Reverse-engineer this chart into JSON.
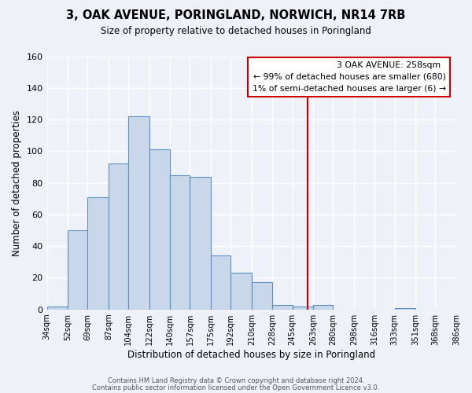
{
  "title": "3, OAK AVENUE, PORINGLAND, NORWICH, NR14 7RB",
  "subtitle": "Size of property relative to detached houses in Poringland",
  "xlabel": "Distribution of detached houses by size in Poringland",
  "ylabel": "Number of detached properties",
  "bar_color": "#c8d8ea",
  "bar_edge_color": "#5a8fbf",
  "background_color": "#eef2f8",
  "grid_color": "#ffffff",
  "bin_edges": [
    34,
    52,
    69,
    87,
    104,
    122,
    140,
    157,
    175,
    192,
    210,
    228,
    245,
    263,
    280,
    298,
    316,
    333,
    351,
    368,
    386
  ],
  "bin_labels": [
    "34sqm",
    "52sqm",
    "69sqm",
    "87sqm",
    "104sqm",
    "122sqm",
    "140sqm",
    "157sqm",
    "175sqm",
    "192sqm",
    "210sqm",
    "228sqm",
    "245sqm",
    "263sqm",
    "280sqm",
    "298sqm",
    "316sqm",
    "333sqm",
    "351sqm",
    "368sqm",
    "386sqm"
  ],
  "counts": [
    2,
    50,
    71,
    92,
    122,
    101,
    85,
    84,
    34,
    23,
    17,
    3,
    2,
    3,
    0,
    0,
    0,
    1,
    0,
    0
  ],
  "vline_x": 258,
  "vline_color": "#cc0000",
  "ylim": [
    0,
    160
  ],
  "yticks": [
    0,
    20,
    40,
    60,
    80,
    100,
    120,
    140,
    160
  ],
  "annotation_title": "3 OAK AVENUE: 258sqm",
  "annotation_line1": "← 99% of detached houses are smaller (680)",
  "annotation_line2": "1% of semi-detached houses are larger (6) →",
  "annotation_box_color": "#ffffff",
  "annotation_edge_color": "#cc0000",
  "footer_line1": "Contains HM Land Registry data © Crown copyright and database right 2024.",
  "footer_line2": "Contains public sector information licensed under the Open Government Licence v3.0."
}
